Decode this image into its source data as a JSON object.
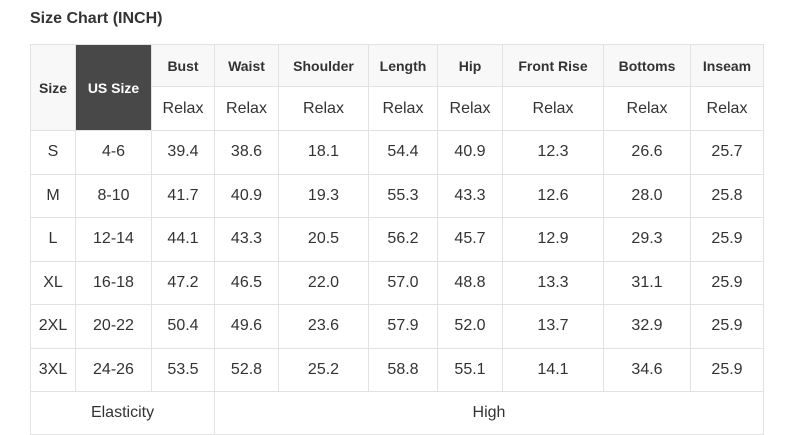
{
  "title": "Size Chart (INCH)",
  "header": {
    "size": "Size",
    "us_size": "US Size",
    "measures": [
      "Bust",
      "Waist",
      "Shoulder",
      "Length",
      "Hip",
      "Front Rise",
      "Bottoms",
      "Inseam"
    ],
    "fit": [
      "Relax",
      "Relax",
      "Relax",
      "Relax",
      "Relax",
      "Relax",
      "Relax",
      "Relax"
    ]
  },
  "rows": [
    {
      "size": "S",
      "us": "4-6",
      "values": [
        "39.4",
        "38.6",
        "18.1",
        "54.4",
        "40.9",
        "12.3",
        "26.6",
        "25.7"
      ]
    },
    {
      "size": "M",
      "us": "8-10",
      "values": [
        "41.7",
        "40.9",
        "19.3",
        "55.3",
        "43.3",
        "12.6",
        "28.0",
        "25.8"
      ]
    },
    {
      "size": "L",
      "us": "12-14",
      "values": [
        "44.1",
        "43.3",
        "20.5",
        "56.2",
        "45.7",
        "12.9",
        "29.3",
        "25.9"
      ]
    },
    {
      "size": "XL",
      "us": "16-18",
      "values": [
        "47.2",
        "46.5",
        "22.0",
        "57.0",
        "48.8",
        "13.3",
        "31.1",
        "25.9"
      ]
    },
    {
      "size": "2XL",
      "us": "20-22",
      "values": [
        "50.4",
        "49.6",
        "23.6",
        "57.9",
        "52.0",
        "13.7",
        "32.9",
        "25.9"
      ]
    },
    {
      "size": "3XL",
      "us": "24-26",
      "values": [
        "53.5",
        "52.8",
        "25.2",
        "58.8",
        "55.1",
        "14.1",
        "34.6",
        "25.9"
      ]
    }
  ],
  "footer": {
    "label": "Elasticity",
    "value": "High"
  },
  "colors": {
    "us_size_bg": "#484848",
    "header_bg": "#f8f8f8",
    "border": "#e2e2e2"
  }
}
